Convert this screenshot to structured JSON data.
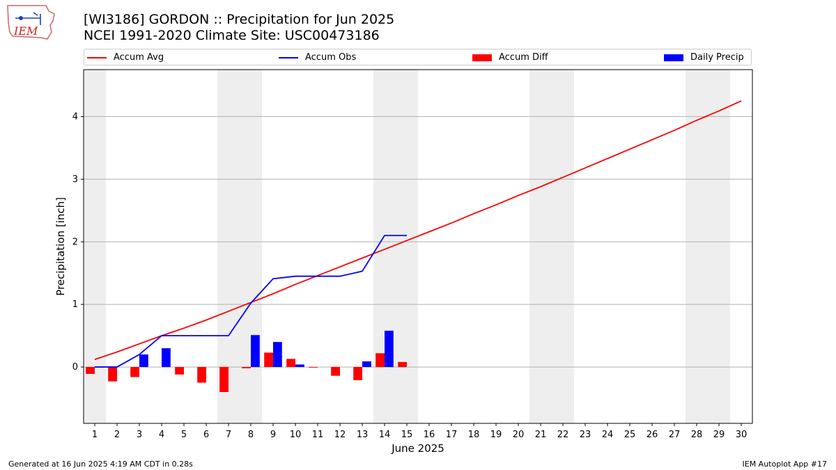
{
  "header": {
    "title_line1": "[WI3186] GORDON :: Precipitation for Jun 2025",
    "title_line2": "NCEI 1991-2020 Climate Site: USC00473186"
  },
  "logo": {
    "text": "IEM"
  },
  "footer": {
    "left": "Generated at 16 Jun 2025 4:19 AM CDT in 0.28s",
    "right": "IEM Autoplot App #17"
  },
  "colors": {
    "avg": "#ff0000",
    "obs": "#0000ff",
    "diff": "#ff0000",
    "daily": "#0000ff",
    "weekend": "#eeeeee",
    "grid": "#b0b0b0"
  },
  "chart_data": {
    "type": "bar",
    "xlabel": "June 2025",
    "ylabel": "Precipitation [inch]",
    "xlim": [
      0.5,
      30.5
    ],
    "ylim": [
      -0.9,
      4.75
    ],
    "yticks": [
      0,
      1,
      2,
      3,
      4
    ],
    "ytick_labels": [
      "0",
      "1",
      "2",
      "3",
      "4"
    ],
    "xticks": [
      1,
      2,
      3,
      4,
      5,
      6,
      7,
      8,
      9,
      10,
      11,
      12,
      13,
      14,
      15,
      16,
      17,
      18,
      19,
      20,
      21,
      22,
      23,
      24,
      25,
      26,
      27,
      28,
      29,
      30
    ],
    "xtick_labels": [
      "1",
      "2",
      "3",
      "4",
      "5",
      "6",
      "7",
      "8",
      "9",
      "10",
      "11",
      "12",
      "13",
      "14",
      "15",
      "16",
      "17",
      "18",
      "19",
      "20",
      "21",
      "22",
      "23",
      "24",
      "25",
      "26",
      "27",
      "28",
      "29",
      "30"
    ],
    "grid": "y-major",
    "legend": {
      "placement": "top",
      "entries": [
        "Accum Avg",
        "Accum Obs",
        "Accum Diff",
        "Daily Precip"
      ]
    },
    "weekend_spans": [
      [
        0.5,
        1.5
      ],
      [
        6.5,
        8.5
      ],
      [
        13.5,
        15.5
      ],
      [
        20.5,
        22.5
      ],
      [
        27.5,
        29.5
      ]
    ],
    "series": [
      {
        "name": "Accum Avg",
        "kind": "line",
        "x": [
          1,
          2,
          3,
          4,
          5,
          6,
          7,
          8,
          9,
          10,
          11,
          12,
          13,
          14,
          15,
          16,
          17,
          18,
          19,
          20,
          21,
          22,
          23,
          24,
          25,
          26,
          27,
          28,
          29,
          30
        ],
        "values": [
          0.12,
          0.24,
          0.37,
          0.5,
          0.62,
          0.75,
          0.89,
          1.03,
          1.17,
          1.32,
          1.46,
          1.6,
          1.74,
          1.88,
          2.02,
          2.16,
          2.3,
          2.45,
          2.59,
          2.74,
          2.88,
          3.03,
          3.18,
          3.33,
          3.48,
          3.63,
          3.78,
          3.94,
          4.09,
          4.25
        ]
      },
      {
        "name": "Accum Obs",
        "kind": "line",
        "x": [
          1,
          2,
          3,
          4,
          5,
          6,
          7,
          8,
          9,
          10,
          11,
          12,
          13,
          14,
          15
        ],
        "values": [
          0.0,
          0.0,
          0.2,
          0.5,
          0.5,
          0.5,
          0.5,
          1.02,
          1.41,
          1.45,
          1.45,
          1.45,
          1.53,
          2.1,
          2.1
        ]
      },
      {
        "name": "Accum Diff",
        "kind": "bar",
        "x": [
          1,
          2,
          3,
          4,
          5,
          6,
          7,
          8,
          9,
          10,
          11,
          12,
          13,
          14,
          15
        ],
        "values": [
          -0.11,
          -0.23,
          -0.16,
          0.0,
          -0.12,
          -0.25,
          -0.4,
          -0.02,
          0.23,
          0.13,
          -0.01,
          -0.14,
          -0.21,
          0.22,
          0.08
        ]
      },
      {
        "name": "Daily Precip",
        "kind": "bar",
        "x": [
          1,
          2,
          3,
          4,
          5,
          6,
          7,
          8,
          9,
          10,
          11,
          12,
          13,
          14,
          15
        ],
        "values": [
          0.0,
          0.0,
          0.2,
          0.3,
          0.0,
          0.0,
          0.0,
          0.51,
          0.4,
          0.04,
          0.0,
          0.0,
          0.09,
          0.58,
          0.0
        ]
      }
    ]
  }
}
